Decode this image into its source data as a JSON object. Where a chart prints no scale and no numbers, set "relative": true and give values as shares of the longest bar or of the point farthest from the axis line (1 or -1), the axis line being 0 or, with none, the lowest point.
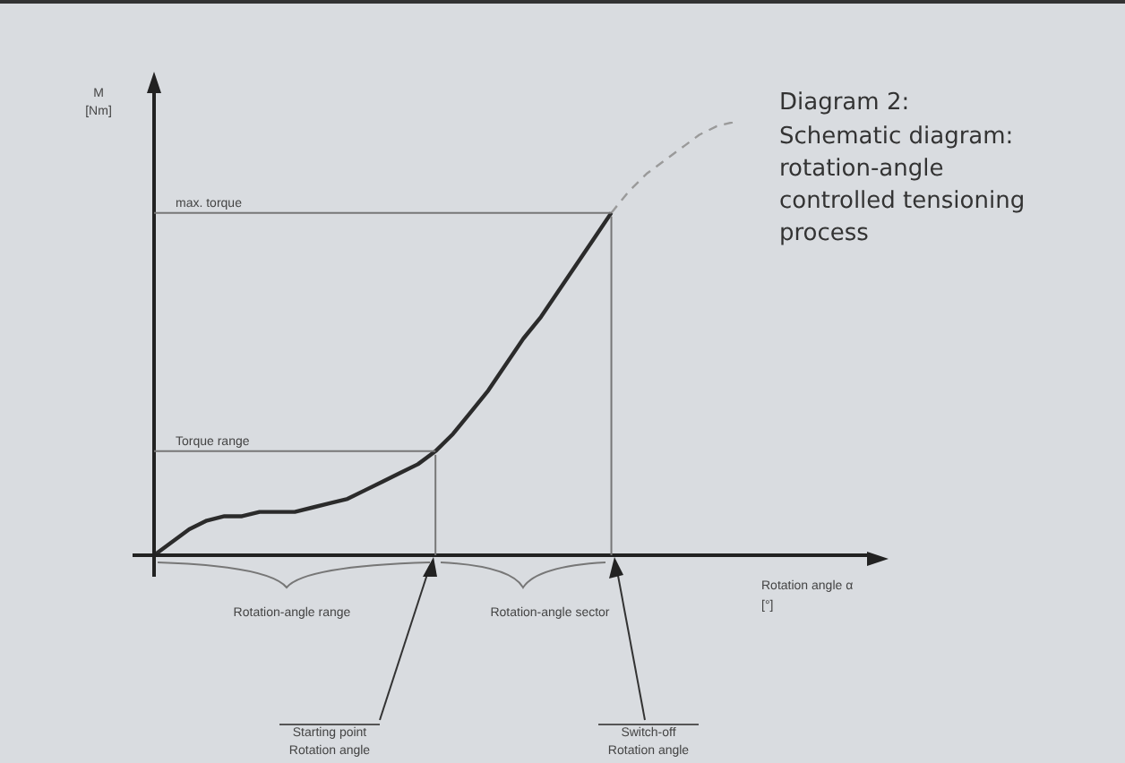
{
  "chart_data": {
    "type": "line",
    "title": "Diagram 2:",
    "subtitle": "Schematic diagram: rotation-angle controlled tensioning process",
    "xlabel": "Rotation angle α [°]",
    "ylabel": "M [Nm]",
    "relative": true,
    "legend": false,
    "marker": "none",
    "categories": [
      null,
      null,
      null,
      null,
      null,
      null,
      null,
      null,
      null,
      null,
      null,
      null,
      null,
      null,
      null,
      null,
      null,
      null,
      null,
      null,
      null,
      null,
      null,
      null,
      null,
      null,
      null,
      null,
      null,
      null,
      null,
      null,
      null,
      null
    ],
    "series": [
      {
        "color": "#2b2b2b",
        "line_style": "solid",
        "values": [
          0,
          0.03,
          0.06,
          0.08,
          0.09,
          0.09,
          0.1,
          0.1,
          0.1,
          0.11,
          0.12,
          0.13,
          0.15,
          0.17,
          0.19,
          0.21,
          0.24,
          0.28,
          0.33,
          0.38,
          0.44,
          0.5,
          0.55,
          0.61,
          0.67,
          0.73,
          0.79,
          null,
          null,
          null,
          null,
          null,
          null,
          null
        ]
      },
      {
        "color": "#9a9a9a",
        "line_style": "dashed",
        "values": [
          null,
          null,
          null,
          null,
          null,
          null,
          null,
          null,
          null,
          null,
          null,
          null,
          null,
          null,
          null,
          null,
          null,
          null,
          null,
          null,
          null,
          null,
          null,
          null,
          null,
          null,
          0.79,
          0.84,
          0.88,
          0.91,
          0.94,
          0.97,
          0.99,
          1
        ]
      }
    ],
    "ref_lines": [
      {
        "axis": "y",
        "value": 0.79,
        "label": "max. torque",
        "color": "#777777"
      },
      {
        "axis": "y",
        "value": 0.24,
        "label": "Torque range",
        "color": "#777777"
      }
    ],
    "annotations": [
      "Rotation-angle range",
      "Rotation-angle sector",
      "Starting point Rotation angle",
      "Switch-off Rotation angle"
    ]
  }
}
